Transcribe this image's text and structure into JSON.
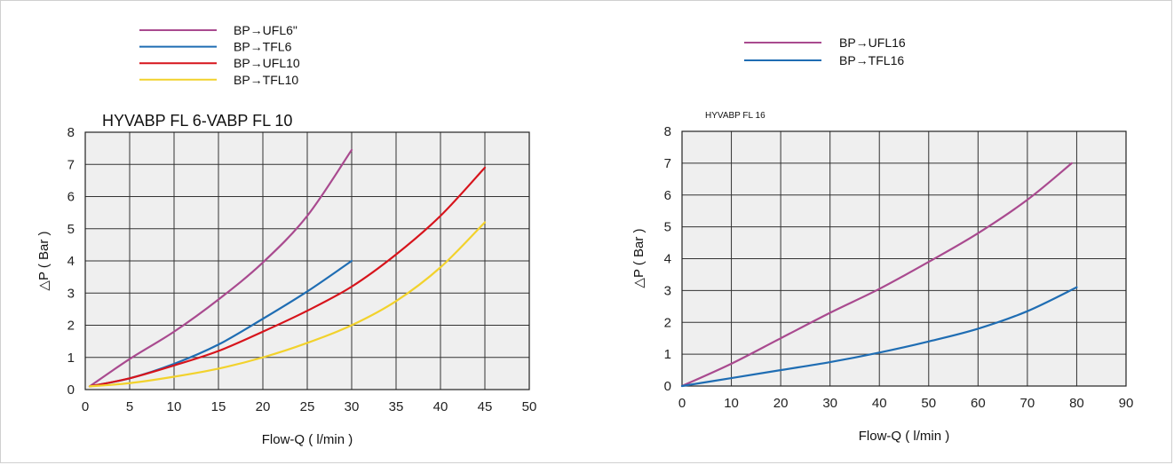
{
  "chart_data": [
    {
      "type": "line",
      "title": "HYVABP FL 6-VABP FL 10",
      "xlabel": "Flow-Q ( l/min )",
      "ylabel": "△P ( Bar )",
      "xlim": [
        0,
        50
      ],
      "ylim": [
        0,
        8
      ],
      "xticks": [
        0,
        5,
        10,
        15,
        20,
        25,
        30,
        35,
        40,
        45,
        50
      ],
      "yticks": [
        0,
        1,
        2,
        3,
        4,
        5,
        6,
        7,
        8
      ],
      "grid": true,
      "legend_position": "top-left",
      "series": [
        {
          "name": "BP→UFL6\"",
          "color": "#a94a8f",
          "x": [
            0.5,
            5,
            10,
            15,
            20,
            25,
            30
          ],
          "y": [
            0.1,
            0.95,
            1.8,
            2.8,
            3.95,
            5.4,
            7.45
          ]
        },
        {
          "name": "BP→TFL6",
          "color": "#1f6db3",
          "x": [
            0.5,
            5,
            10,
            15,
            20,
            25,
            30
          ],
          "y": [
            0.1,
            0.35,
            0.8,
            1.4,
            2.2,
            3.05,
            4.0
          ]
        },
        {
          "name": "BP→UFL10",
          "color": "#d7141c",
          "x": [
            0.5,
            5,
            10,
            15,
            20,
            25,
            30,
            35,
            40,
            45
          ],
          "y": [
            0.1,
            0.35,
            0.75,
            1.2,
            1.8,
            2.45,
            3.2,
            4.2,
            5.4,
            6.9
          ]
        },
        {
          "name": "BP→TFL10",
          "color": "#f2d22c",
          "x": [
            0.5,
            5,
            10,
            15,
            20,
            25,
            30,
            35,
            40,
            45
          ],
          "y": [
            0.1,
            0.2,
            0.4,
            0.65,
            1.0,
            1.45,
            2.0,
            2.75,
            3.8,
            5.2
          ]
        }
      ]
    },
    {
      "type": "line",
      "title": "HYVABP FL 16",
      "xlabel": "Flow-Q ( l/min )",
      "ylabel": "△P ( Bar )",
      "xlim": [
        0,
        90
      ],
      "ylim": [
        0,
        8
      ],
      "xticks": [
        0,
        10,
        20,
        30,
        40,
        50,
        60,
        70,
        80,
        90
      ],
      "yticks": [
        0,
        1,
        2,
        3,
        4,
        5,
        6,
        7,
        8
      ],
      "grid": true,
      "legend_position": "top-center",
      "series": [
        {
          "name": "BP→UFL16",
          "color": "#a94a8f",
          "x": [
            0,
            10,
            20,
            30,
            40,
            50,
            60,
            70,
            79
          ],
          "y": [
            0,
            0.7,
            1.5,
            2.3,
            3.05,
            3.9,
            4.8,
            5.85,
            7.0
          ]
        },
        {
          "name": "BP→TFL16",
          "color": "#1f6db3",
          "x": [
            0,
            10,
            20,
            30,
            40,
            50,
            60,
            70,
            80
          ],
          "y": [
            0,
            0.25,
            0.5,
            0.75,
            1.05,
            1.4,
            1.8,
            2.35,
            3.1
          ]
        }
      ]
    }
  ]
}
